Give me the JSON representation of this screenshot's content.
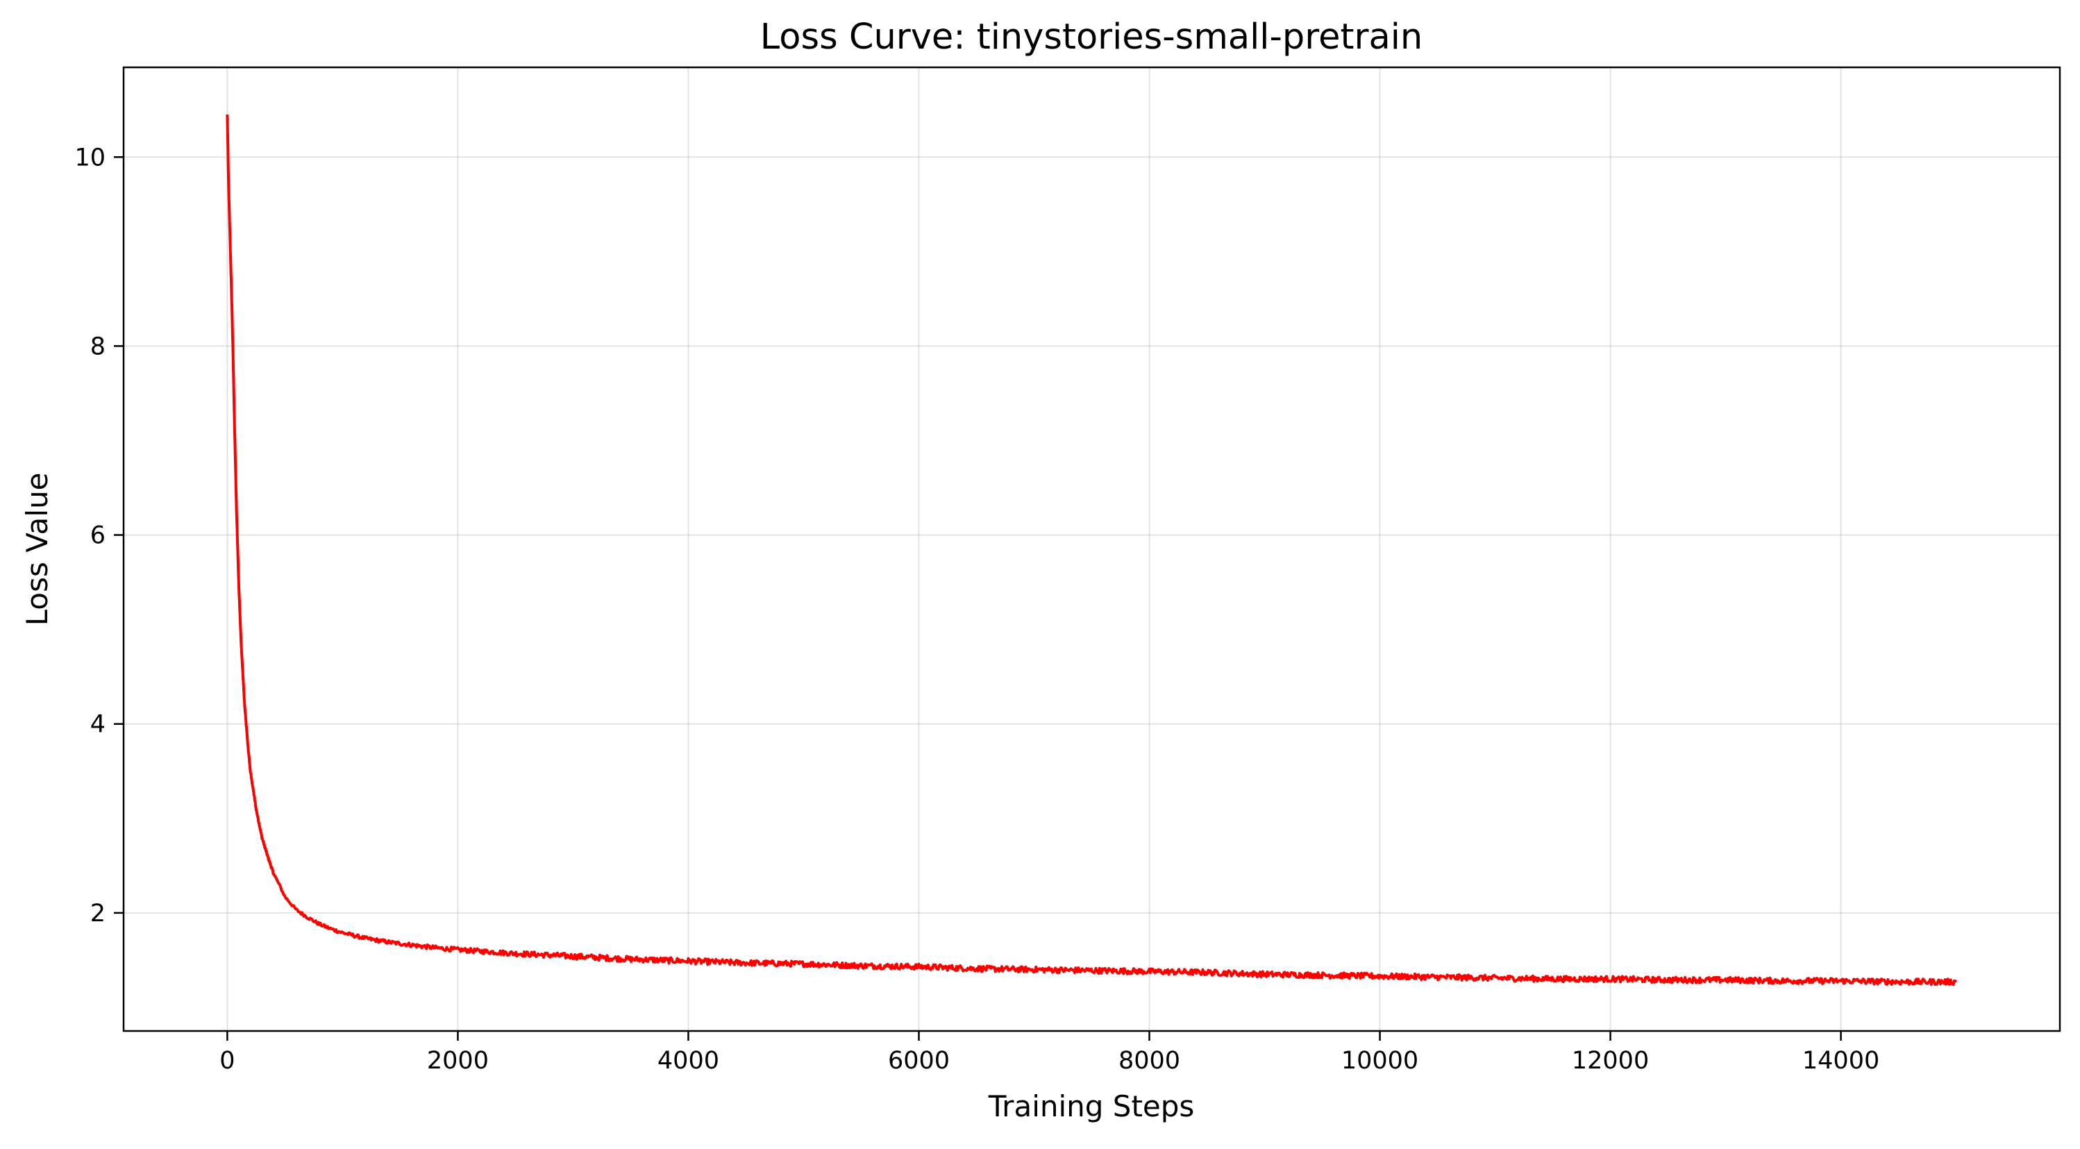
{
  "chart_data": {
    "type": "line",
    "title": "Loss Curve: tinystories-small-pretrain",
    "xlabel": "Training Steps",
    "ylabel": "Loss Value",
    "xlim": [
      -900,
      15900
    ],
    "ylim": [
      0.75,
      10.95
    ],
    "grid": true,
    "line_color": "#ff0000",
    "x_ticks": [
      0,
      2000,
      4000,
      6000,
      8000,
      10000,
      12000,
      14000
    ],
    "x_tick_labels": [
      "0",
      "2000",
      "4000",
      "6000",
      "8000",
      "10000",
      "12000",
      "14000"
    ],
    "y_ticks": [
      2,
      4,
      6,
      8,
      10
    ],
    "y_tick_labels": [
      "2",
      "4",
      "6",
      "8",
      "10"
    ],
    "series": [
      {
        "x": [
          0,
          5,
          10,
          20,
          30,
          40,
          50,
          60,
          80,
          100,
          120,
          150,
          180,
          200,
          250,
          300,
          350,
          400,
          450,
          500,
          600,
          700,
          800,
          900,
          1000,
          1200,
          1400,
          1600,
          1800,
          2000,
          2500,
          3000,
          3500,
          4000,
          4500,
          5000,
          5500,
          6000,
          6500,
          7000,
          7500,
          8000,
          8500,
          9000,
          9500,
          10000,
          10500,
          11000,
          11500,
          12000,
          12500,
          13000,
          13500,
          14000,
          14500,
          15000
        ],
        "y": [
          10.45,
          10.1,
          9.75,
          9.3,
          8.85,
          8.4,
          7.9,
          7.3,
          6.25,
          5.45,
          4.85,
          4.2,
          3.75,
          3.5,
          3.1,
          2.8,
          2.6,
          2.42,
          2.3,
          2.17,
          2.03,
          1.95,
          1.88,
          1.83,
          1.79,
          1.73,
          1.69,
          1.66,
          1.63,
          1.61,
          1.57,
          1.54,
          1.51,
          1.49,
          1.47,
          1.46,
          1.44,
          1.43,
          1.41,
          1.4,
          1.39,
          1.38,
          1.37,
          1.35,
          1.34,
          1.33,
          1.32,
          1.31,
          1.3,
          1.3,
          1.29,
          1.29,
          1.28,
          1.28,
          1.27,
          1.27
        ]
      }
    ]
  }
}
